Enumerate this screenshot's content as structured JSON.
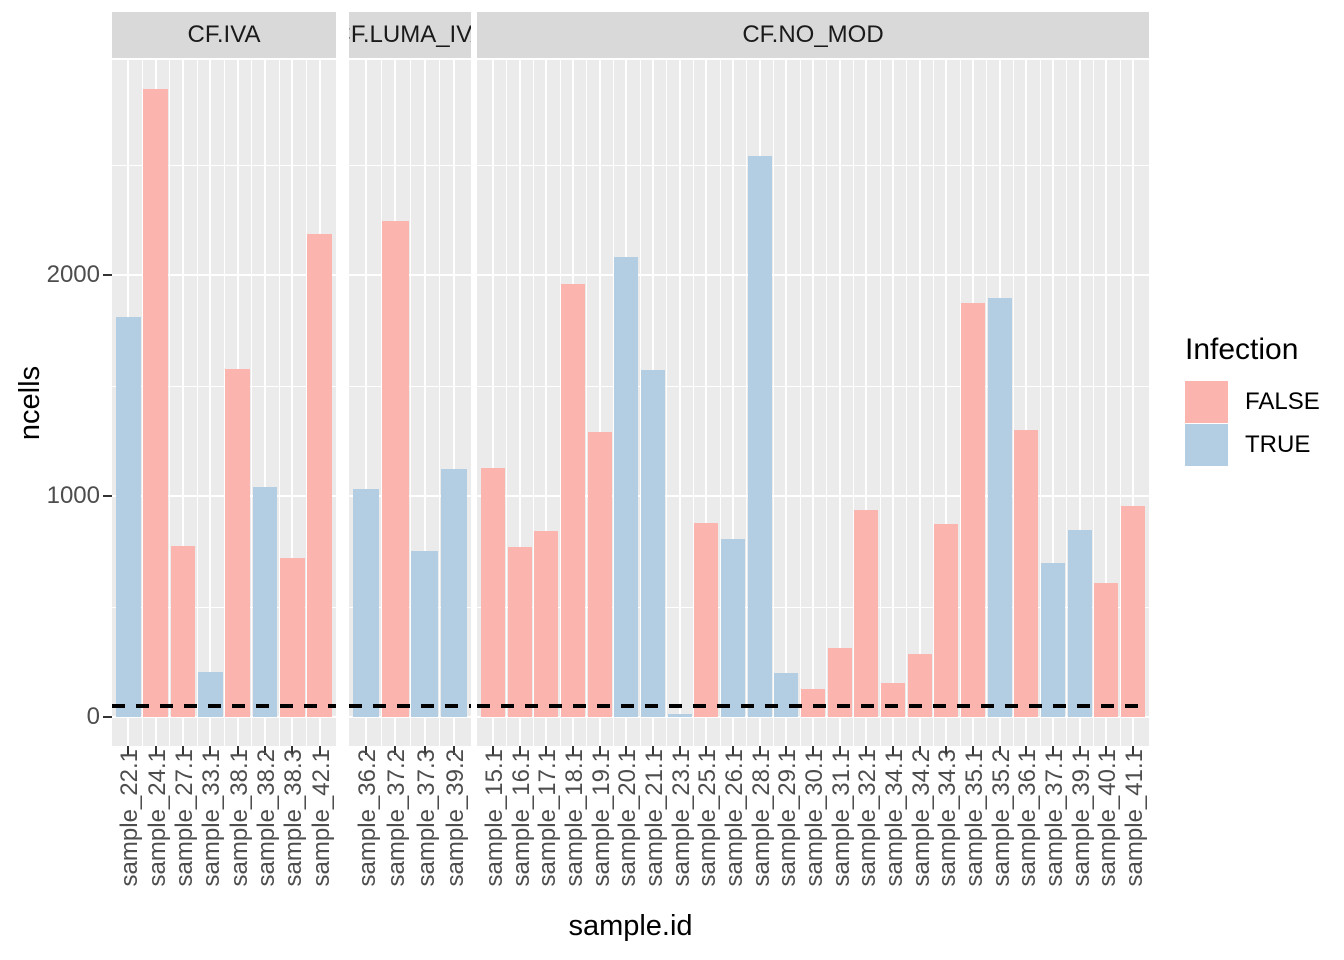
{
  "figure": {
    "x_axis": {
      "title": "sample.id"
    },
    "y_axis": {
      "title": "ncells",
      "tick_labels": [
        "0",
        "1000",
        "2000"
      ],
      "tick_values": [
        0,
        1000,
        2000
      ],
      "minor_values": [
        500,
        1500,
        2500
      ]
    },
    "legend": {
      "title": "Infection",
      "items": [
        {
          "label": "FALSE",
          "color": "#FBB4AE"
        },
        {
          "label": "TRUE",
          "color": "#B3CDE3"
        }
      ]
    },
    "reference_line": {
      "value": 50,
      "style": "dashed",
      "color": "#000000"
    },
    "colors": {
      "fill_false": "#FBB4AE",
      "fill_true": "#B3CDE3",
      "panel_bg": "#EBEBEB",
      "strip_bg": "#D9D9D9",
      "grid": "#FFFFFF",
      "axis_text": "#4D4D4D",
      "strip_text": "#1A1A1A"
    }
  },
  "chart_data": {
    "type": "bar",
    "title": "",
    "xlabel": "sample.id",
    "ylabel": "ncells",
    "ylim": [
      0,
      2970
    ],
    "grid": true,
    "legend_position": "right",
    "legend_title": "Infection",
    "series_colors": {
      "FALSE": "#FBB4AE",
      "TRUE": "#B3CDE3"
    },
    "reference_line_y": 50,
    "facets": [
      {
        "label": "CF.IVA",
        "bars": [
          {
            "sample": "sample_22.1",
            "infection": "TRUE",
            "ncells": 1810
          },
          {
            "sample": "sample_24.1",
            "infection": "FALSE",
            "ncells": 2840
          },
          {
            "sample": "sample_27.1",
            "infection": "FALSE",
            "ncells": 775
          },
          {
            "sample": "sample_33.1",
            "infection": "TRUE",
            "ncells": 205
          },
          {
            "sample": "sample_38.1",
            "infection": "FALSE",
            "ncells": 1575
          },
          {
            "sample": "sample_38.2",
            "infection": "TRUE",
            "ncells": 1040
          },
          {
            "sample": "sample_38.3",
            "infection": "FALSE",
            "ncells": 720
          },
          {
            "sample": "sample_42.1",
            "infection": "FALSE",
            "ncells": 2185
          }
        ]
      },
      {
        "label": "CF.LUMA_IVA",
        "label_clipped_in_view": true,
        "bars": [
          {
            "sample": "sample_36.2",
            "infection": "TRUE",
            "ncells": 1030
          },
          {
            "sample": "sample_37.2",
            "infection": "FALSE",
            "ncells": 2245
          },
          {
            "sample": "sample_37.3",
            "infection": "TRUE",
            "ncells": 750
          },
          {
            "sample": "sample_39.2",
            "infection": "TRUE",
            "ncells": 1120
          }
        ]
      },
      {
        "label": "CF.NO_MOD",
        "bars": [
          {
            "sample": "sample_15.1",
            "infection": "FALSE",
            "ncells": 1125
          },
          {
            "sample": "sample_16.1",
            "infection": "FALSE",
            "ncells": 770
          },
          {
            "sample": "sample_17.1",
            "infection": "FALSE",
            "ncells": 840
          },
          {
            "sample": "sample_18.1",
            "infection": "FALSE",
            "ncells": 1960
          },
          {
            "sample": "sample_19.1",
            "infection": "FALSE",
            "ncells": 1290
          },
          {
            "sample": "sample_20.1",
            "infection": "TRUE",
            "ncells": 2080
          },
          {
            "sample": "sample_21.1",
            "infection": "TRUE",
            "ncells": 1570
          },
          {
            "sample": "sample_23.1",
            "infection": "TRUE",
            "ncells": 15
          },
          {
            "sample": "sample_25.1",
            "infection": "FALSE",
            "ncells": 880
          },
          {
            "sample": "sample_26.1",
            "infection": "TRUE",
            "ncells": 805
          },
          {
            "sample": "sample_28.1",
            "infection": "TRUE",
            "ncells": 2540
          },
          {
            "sample": "sample_29.1",
            "infection": "TRUE",
            "ncells": 200
          },
          {
            "sample": "sample_30.1",
            "infection": "FALSE",
            "ncells": 125
          },
          {
            "sample": "sample_31.1",
            "infection": "FALSE",
            "ncells": 310
          },
          {
            "sample": "sample_32.1",
            "infection": "FALSE",
            "ncells": 935
          },
          {
            "sample": "sample_34.1",
            "infection": "FALSE",
            "ncells": 155
          },
          {
            "sample": "sample_34.2",
            "infection": "FALSE",
            "ncells": 285
          },
          {
            "sample": "sample_34.3",
            "infection": "FALSE",
            "ncells": 875
          },
          {
            "sample": "sample_35.1",
            "infection": "FALSE",
            "ncells": 1875
          },
          {
            "sample": "sample_35.2",
            "infection": "TRUE",
            "ncells": 1895
          },
          {
            "sample": "sample_36.1",
            "infection": "FALSE",
            "ncells": 1300
          },
          {
            "sample": "sample_37.1",
            "infection": "TRUE",
            "ncells": 695
          },
          {
            "sample": "sample_39.1",
            "infection": "TRUE",
            "ncells": 845
          },
          {
            "sample": "sample_40.1",
            "infection": "FALSE",
            "ncells": 605
          },
          {
            "sample": "sample_41.1",
            "infection": "FALSE",
            "ncells": 955
          }
        ]
      }
    ]
  }
}
